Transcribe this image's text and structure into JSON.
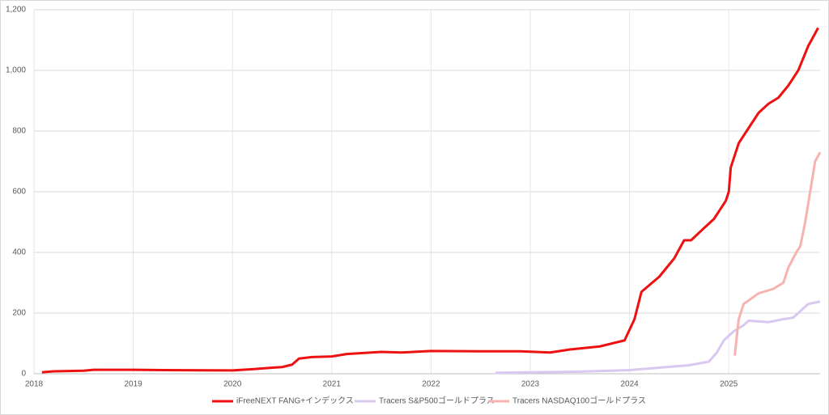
{
  "chart_data": {
    "type": "line",
    "xlim": [
      2018,
      2025.92
    ],
    "xticks": [
      2018,
      2019,
      2020,
      2021,
      2022,
      2023,
      2024,
      2025
    ],
    "ylim": [
      0,
      1200
    ],
    "yticks": [
      0,
      200,
      400,
      600,
      800,
      {
        "value": 1000,
        "label": "1,000"
      },
      {
        "value": 1200,
        "label": "1,200"
      }
    ],
    "grid": true,
    "legend": "bottom",
    "series": [
      {
        "name": "iFreeNEXT FANG+インデックス",
        "color": "#ee1111",
        "x": [
          2018.08,
          2018.2,
          2018.5,
          2018.6,
          2019.0,
          2019.3,
          2020.0,
          2020.2,
          2020.4,
          2020.5,
          2020.6,
          2020.67,
          2020.8,
          2021.0,
          2021.15,
          2021.5,
          2021.7,
          2022.0,
          2022.5,
          2022.9,
          2023.2,
          2023.4,
          2023.7,
          2023.95,
          2024.05,
          2024.12,
          2024.3,
          2024.45,
          2024.55,
          2024.62,
          2024.75,
          2024.85,
          2024.97,
          2025.0,
          2025.02,
          2025.1,
          2025.2,
          2025.3,
          2025.4,
          2025.5,
          2025.6,
          2025.7,
          2025.8,
          2025.9
        ],
        "values": [
          5,
          8,
          10,
          13,
          13,
          12,
          11,
          15,
          20,
          22,
          30,
          50,
          55,
          57,
          65,
          72,
          70,
          75,
          74,
          74,
          70,
          80,
          90,
          110,
          180,
          270,
          320,
          380,
          440,
          440,
          480,
          510,
          570,
          600,
          680,
          760,
          810,
          860,
          890,
          910,
          950,
          1000,
          1080,
          1140
        ]
      },
      {
        "name": "Tracers S&P500ゴールドプラス",
        "color": "#d9c8ef",
        "x": [
          2022.65,
          2023.5,
          2024.0,
          2024.3,
          2024.6,
          2024.8,
          2024.88,
          2024.95,
          2025.05,
          2025.15,
          2025.2,
          2025.4,
          2025.55,
          2025.65,
          2025.75,
          2025.8,
          2025.92
        ],
        "values": [
          3,
          7,
          12,
          20,
          28,
          40,
          70,
          110,
          140,
          160,
          175,
          170,
          180,
          185,
          215,
          230,
          238
        ]
      },
      {
        "name": "Tracers NASDAQ100ゴールドプラス",
        "color": "#f7b3b0",
        "x": [
          2025.06,
          2025.1,
          2025.15,
          2025.3,
          2025.45,
          2025.55,
          2025.6,
          2025.68,
          2025.72,
          2025.77,
          2025.82,
          2025.87,
          2025.92
        ],
        "values": [
          60,
          180,
          230,
          265,
          280,
          300,
          350,
          400,
          420,
          500,
          600,
          700,
          730
        ]
      }
    ]
  }
}
